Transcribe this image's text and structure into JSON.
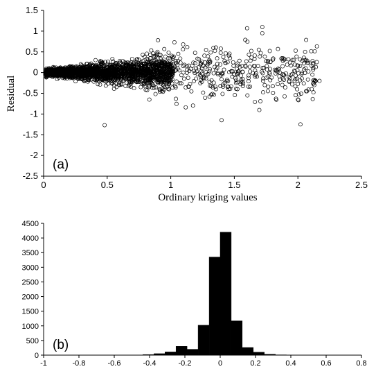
{
  "chart_data": [
    {
      "type": "scatter",
      "panel_label": "(a)",
      "xlabel": "Ordinary kriging values",
      "ylabel": "Residual",
      "xlim": [
        0,
        2.5
      ],
      "ylim": [
        -2.5,
        1.5
      ],
      "xticks": [
        "0",
        "0.5",
        "1",
        "1.5",
        "2",
        "2.5"
      ],
      "yticks": [
        "1.5",
        "1",
        "0.5",
        "0",
        "-0.5",
        "-1",
        "-1.5",
        "-2",
        "-2.5"
      ],
      "marker": "open-circle",
      "notable_points": [
        {
          "x": 0.48,
          "y": -1.27
        },
        {
          "x": 1.72,
          "y": 1.1
        },
        {
          "x": 1.72,
          "y": 0.95
        },
        {
          "x": 2.02,
          "y": -1.25
        },
        {
          "x": 1.4,
          "y": -1.15
        },
        {
          "x": 0.9,
          "y": 0.78
        },
        {
          "x": 2.17,
          "y": -0.2
        }
      ]
    },
    {
      "type": "bar",
      "panel_label": "(b)",
      "xlim": [
        -1,
        0.8
      ],
      "ylim": [
        0,
        4500
      ],
      "xticks": [
        "-1",
        "-0.8",
        "-0.6",
        "-0.4",
        "-0.2",
        "0",
        "0.2",
        "0.4",
        "0.6",
        "0.8"
      ],
      "yticks": [
        "4500",
        "4000",
        "3500",
        "3000",
        "2500",
        "2000",
        "1500",
        "1000",
        "500",
        "0"
      ],
      "bin_width": 0.0625,
      "bins": [
        {
          "x0": -0.4375,
          "value": 20
        },
        {
          "x0": -0.375,
          "value": 50
        },
        {
          "x0": -0.3125,
          "value": 110
        },
        {
          "x0": -0.25,
          "value": 300
        },
        {
          "x0": -0.1875,
          "value": 200
        },
        {
          "x0": -0.125,
          "value": 1020
        },
        {
          "x0": -0.0625,
          "value": 3350
        },
        {
          "x0": 0.0,
          "value": 4200
        },
        {
          "x0": 0.0625,
          "value": 1170
        },
        {
          "x0": 0.125,
          "value": 260
        },
        {
          "x0": 0.1875,
          "value": 100
        },
        {
          "x0": 0.25,
          "value": 30
        },
        {
          "x0": 0.3125,
          "value": 10
        }
      ]
    }
  ]
}
